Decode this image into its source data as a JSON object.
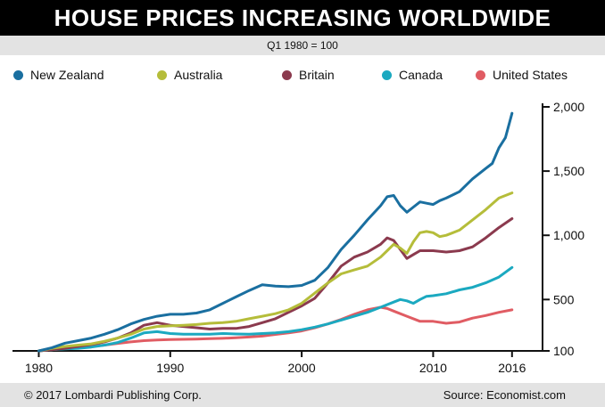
{
  "header": {
    "title": "HOUSE PRICES INCREASING WORLDWIDE",
    "subtitle": "Q1 1980 = 100"
  },
  "footer": {
    "copyright": "© 2017 Lombardi Publishing Corp.",
    "source": "Source: Economist.com"
  },
  "chart_data": {
    "type": "line",
    "title": "HOUSE PRICES INCREASING WORLDWIDE",
    "subtitle": "Q1 1980 = 100",
    "xlabel": "",
    "ylabel": "",
    "xlim": [
      1978,
      2019
    ],
    "ylim": [
      100,
      2000
    ],
    "x_ticks": [
      1980,
      1990,
      2000,
      2010,
      2016
    ],
    "x_tick_labels": [
      "1980",
      "1990",
      "2000",
      "2010",
      "2016"
    ],
    "y_ticks": [
      100,
      500,
      1000,
      1500,
      2000
    ],
    "y_tick_labels": [
      "100",
      "500",
      "1,000",
      "1,500",
      "2,000"
    ],
    "y_axis_side": "right",
    "legend_position": "top",
    "grid": false,
    "series": [
      {
        "name": "New Zealand",
        "color": "#1a6fa0",
        "points": [
          [
            1980,
            100
          ],
          [
            1981,
            125
          ],
          [
            1982,
            160
          ],
          [
            1983,
            180
          ],
          [
            1984,
            200
          ],
          [
            1985,
            230
          ],
          [
            1986,
            265
          ],
          [
            1987,
            310
          ],
          [
            1988,
            345
          ],
          [
            1989,
            370
          ],
          [
            1990,
            385
          ],
          [
            1991,
            385
          ],
          [
            1992,
            395
          ],
          [
            1993,
            420
          ],
          [
            1994,
            470
          ],
          [
            1995,
            520
          ],
          [
            1996,
            570
          ],
          [
            1997,
            615
          ],
          [
            1998,
            605
          ],
          [
            1999,
            600
          ],
          [
            2000,
            610
          ],
          [
            2001,
            650
          ],
          [
            2002,
            750
          ],
          [
            2003,
            890
          ],
          [
            2004,
            1000
          ],
          [
            2005,
            1120
          ],
          [
            2006,
            1230
          ],
          [
            2006.5,
            1300
          ],
          [
            2007,
            1310
          ],
          [
            2007.5,
            1230
          ],
          [
            2008,
            1180
          ],
          [
            2008.5,
            1220
          ],
          [
            2009,
            1260
          ],
          [
            2009.5,
            1250
          ],
          [
            2010,
            1240
          ],
          [
            2010.5,
            1270
          ],
          [
            2011,
            1290
          ],
          [
            2012,
            1340
          ],
          [
            2013,
            1440
          ],
          [
            2014,
            1520
          ],
          [
            2014.5,
            1560
          ],
          [
            2015,
            1680
          ],
          [
            2015.5,
            1760
          ],
          [
            2016,
            1950
          ]
        ]
      },
      {
        "name": "Australia",
        "color": "#b5bd3a",
        "points": [
          [
            1980,
            100
          ],
          [
            1981,
            120
          ],
          [
            1982,
            135
          ],
          [
            1983,
            145
          ],
          [
            1984,
            155
          ],
          [
            1985,
            175
          ],
          [
            1986,
            200
          ],
          [
            1987,
            230
          ],
          [
            1988,
            270
          ],
          [
            1989,
            290
          ],
          [
            1990,
            295
          ],
          [
            1991,
            300
          ],
          [
            1992,
            305
          ],
          [
            1993,
            315
          ],
          [
            1994,
            320
          ],
          [
            1995,
            330
          ],
          [
            1996,
            350
          ],
          [
            1997,
            370
          ],
          [
            1998,
            390
          ],
          [
            1999,
            420
          ],
          [
            2000,
            470
          ],
          [
            2001,
            550
          ],
          [
            2002,
            630
          ],
          [
            2003,
            700
          ],
          [
            2004,
            730
          ],
          [
            2005,
            760
          ],
          [
            2006,
            830
          ],
          [
            2006.5,
            880
          ],
          [
            2007,
            930
          ],
          [
            2007.5,
            900
          ],
          [
            2008,
            860
          ],
          [
            2008.5,
            950
          ],
          [
            2009,
            1020
          ],
          [
            2009.5,
            1030
          ],
          [
            2010,
            1020
          ],
          [
            2010.5,
            990
          ],
          [
            2011,
            1000
          ],
          [
            2012,
            1040
          ],
          [
            2013,
            1120
          ],
          [
            2014,
            1200
          ],
          [
            2015,
            1290
          ],
          [
            2016,
            1330
          ]
        ]
      },
      {
        "name": "Britain",
        "color": "#8b3a4e",
        "points": [
          [
            1980,
            100
          ],
          [
            1981,
            110
          ],
          [
            1982,
            120
          ],
          [
            1983,
            135
          ],
          [
            1984,
            150
          ],
          [
            1985,
            170
          ],
          [
            1986,
            200
          ],
          [
            1987,
            240
          ],
          [
            1988,
            300
          ],
          [
            1989,
            320
          ],
          [
            1990,
            300
          ],
          [
            1991,
            290
          ],
          [
            1992,
            280
          ],
          [
            1993,
            270
          ],
          [
            1994,
            275
          ],
          [
            1995,
            275
          ],
          [
            1996,
            290
          ],
          [
            1997,
            320
          ],
          [
            1998,
            350
          ],
          [
            1999,
            400
          ],
          [
            2000,
            450
          ],
          [
            2001,
            510
          ],
          [
            2002,
            630
          ],
          [
            2003,
            760
          ],
          [
            2004,
            830
          ],
          [
            2005,
            870
          ],
          [
            2006,
            930
          ],
          [
            2006.5,
            980
          ],
          [
            2007,
            960
          ],
          [
            2007.5,
            890
          ],
          [
            2008,
            820
          ],
          [
            2008.5,
            850
          ],
          [
            2009,
            880
          ],
          [
            2010,
            880
          ],
          [
            2011,
            870
          ],
          [
            2012,
            880
          ],
          [
            2013,
            910
          ],
          [
            2014,
            980
          ],
          [
            2015,
            1060
          ],
          [
            2016,
            1130
          ]
        ]
      },
      {
        "name": "Canada",
        "color": "#1ba9c0",
        "points": [
          [
            1980,
            100
          ],
          [
            1981,
            110
          ],
          [
            1982,
            115
          ],
          [
            1983,
            120
          ],
          [
            1984,
            130
          ],
          [
            1985,
            145
          ],
          [
            1986,
            165
          ],
          [
            1987,
            200
          ],
          [
            1988,
            240
          ],
          [
            1989,
            250
          ],
          [
            1990,
            235
          ],
          [
            1991,
            230
          ],
          [
            1992,
            230
          ],
          [
            1993,
            230
          ],
          [
            1994,
            235
          ],
          [
            1995,
            232
          ],
          [
            1996,
            230
          ],
          [
            1997,
            235
          ],
          [
            1998,
            240
          ],
          [
            1999,
            250
          ],
          [
            2000,
            265
          ],
          [
            2001,
            285
          ],
          [
            2002,
            310
          ],
          [
            2003,
            340
          ],
          [
            2004,
            370
          ],
          [
            2005,
            400
          ],
          [
            2006,
            440
          ],
          [
            2007,
            480
          ],
          [
            2007.5,
            500
          ],
          [
            2008,
            490
          ],
          [
            2008.5,
            470
          ],
          [
            2009,
            500
          ],
          [
            2009.5,
            525
          ],
          [
            2010,
            530
          ],
          [
            2011,
            545
          ],
          [
            2012,
            575
          ],
          [
            2013,
            595
          ],
          [
            2014,
            630
          ],
          [
            2015,
            675
          ],
          [
            2016,
            750
          ]
        ]
      },
      {
        "name": "United States",
        "color": "#e05c63",
        "points": [
          [
            1980,
            100
          ],
          [
            1981,
            110
          ],
          [
            1982,
            118
          ],
          [
            1983,
            125
          ],
          [
            1984,
            135
          ],
          [
            1985,
            145
          ],
          [
            1986,
            158
          ],
          [
            1987,
            170
          ],
          [
            1988,
            180
          ],
          [
            1989,
            185
          ],
          [
            1990,
            188
          ],
          [
            1991,
            190
          ],
          [
            1992,
            192
          ],
          [
            1993,
            195
          ],
          [
            1994,
            198
          ],
          [
            1995,
            202
          ],
          [
            1996,
            208
          ],
          [
            1997,
            215
          ],
          [
            1998,
            228
          ],
          [
            1999,
            240
          ],
          [
            2000,
            255
          ],
          [
            2001,
            280
          ],
          [
            2002,
            310
          ],
          [
            2003,
            345
          ],
          [
            2004,
            385
          ],
          [
            2005,
            420
          ],
          [
            2006,
            440
          ],
          [
            2006.5,
            430
          ],
          [
            2007,
            410
          ],
          [
            2008,
            370
          ],
          [
            2009,
            330
          ],
          [
            2010,
            330
          ],
          [
            2011,
            315
          ],
          [
            2012,
            325
          ],
          [
            2013,
            355
          ],
          [
            2014,
            375
          ],
          [
            2015,
            400
          ],
          [
            2016,
            420
          ]
        ]
      }
    ]
  }
}
